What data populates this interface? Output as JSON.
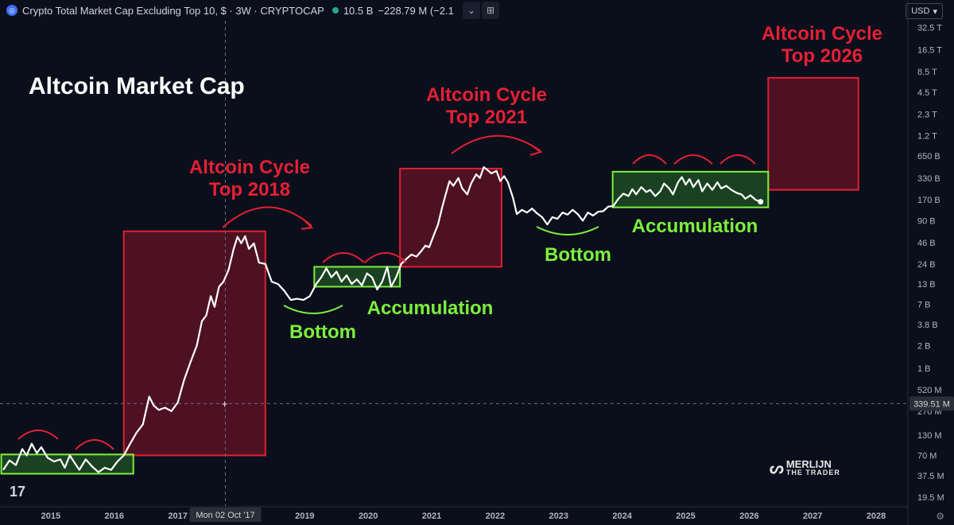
{
  "header": {
    "title": "Crypto Total Market Cap Excluding Top 10, $ · 3W · CRYPTOCAP",
    "volume": "10.5 B",
    "change": "−228.79 M (−2.1",
    "currency": "USD"
  },
  "watermark": {
    "line1": "MERLIJN",
    "line2": "THE TRADER"
  },
  "crosshair": {
    "date_label": "Mon 02 Oct '17",
    "price_label": "339.51 M"
  },
  "chart_data": {
    "type": "line",
    "title": "Altcoin Market Cap",
    "y_scale": "log",
    "ylim": [
      15000000,
      40000000000000
    ],
    "xlim": [
      2014.2,
      2028.5
    ],
    "y_ticks": [
      {
        "v": 32500000000000,
        "label": "32.5 T"
      },
      {
        "v": 16500000000000,
        "label": "16.5 T"
      },
      {
        "v": 8500000000000,
        "label": "8.5 T"
      },
      {
        "v": 4500000000000,
        "label": "4.5 T"
      },
      {
        "v": 2300000000000,
        "label": "2.3 T"
      },
      {
        "v": 1200000000000,
        "label": "1.2 T"
      },
      {
        "v": 650000000000,
        "label": "650 B"
      },
      {
        "v": 330000000000,
        "label": "330 B"
      },
      {
        "v": 170000000000,
        "label": "170 B"
      },
      {
        "v": 90000000000,
        "label": "90 B"
      },
      {
        "v": 46000000000,
        "label": "46 B"
      },
      {
        "v": 24000000000,
        "label": "24 B"
      },
      {
        "v": 13000000000,
        "label": "13 B"
      },
      {
        "v": 7000000000,
        "label": "7 B"
      },
      {
        "v": 3800000000,
        "label": "3.8 B"
      },
      {
        "v": 2000000000,
        "label": "2 B"
      },
      {
        "v": 1000000000,
        "label": "1 B"
      },
      {
        "v": 520000000,
        "label": "520 M"
      },
      {
        "v": 270000000,
        "label": "270 M"
      },
      {
        "v": 130000000,
        "label": "130 M"
      },
      {
        "v": 70000000,
        "label": "70 M"
      },
      {
        "v": 37500000,
        "label": "37.5 M"
      },
      {
        "v": 19500000,
        "label": "19.5 M"
      }
    ],
    "x_ticks": [
      {
        "v": 2015,
        "label": "2015"
      },
      {
        "v": 2016,
        "label": "2016"
      },
      {
        "v": 2017,
        "label": "2017"
      },
      {
        "v": 2019,
        "label": "2019"
      },
      {
        "v": 2020,
        "label": "2020"
      },
      {
        "v": 2021,
        "label": "2021"
      },
      {
        "v": 2022,
        "label": "2022"
      },
      {
        "v": 2023,
        "label": "2023"
      },
      {
        "v": 2024,
        "label": "2024"
      },
      {
        "v": 2025,
        "label": "2025"
      },
      {
        "v": 2026,
        "label": "2026"
      },
      {
        "v": 2027,
        "label": "2027"
      },
      {
        "v": 2028,
        "label": "2028"
      }
    ],
    "crosshair": {
      "x": 2017.75,
      "y": 339510000
    },
    "series": [
      {
        "color": "#ffffff",
        "points": [
          [
            2014.25,
            45000000
          ],
          [
            2014.35,
            60000000
          ],
          [
            2014.45,
            52000000
          ],
          [
            2014.55,
            85000000
          ],
          [
            2014.62,
            70000000
          ],
          [
            2014.7,
            100000000
          ],
          [
            2014.78,
            75000000
          ],
          [
            2014.85,
            90000000
          ],
          [
            2014.95,
            65000000
          ],
          [
            2015.05,
            58000000
          ],
          [
            2015.15,
            62000000
          ],
          [
            2015.22,
            48000000
          ],
          [
            2015.3,
            70000000
          ],
          [
            2015.38,
            55000000
          ],
          [
            2015.45,
            45000000
          ],
          [
            2015.55,
            62000000
          ],
          [
            2015.65,
            50000000
          ],
          [
            2015.75,
            42000000
          ],
          [
            2015.85,
            48000000
          ],
          [
            2015.95,
            45000000
          ],
          [
            2016.05,
            58000000
          ],
          [
            2016.15,
            70000000
          ],
          [
            2016.25,
            100000000
          ],
          [
            2016.35,
            140000000
          ],
          [
            2016.45,
            180000000
          ],
          [
            2016.55,
            420000000
          ],
          [
            2016.62,
            320000000
          ],
          [
            2016.7,
            280000000
          ],
          [
            2016.8,
            300000000
          ],
          [
            2016.9,
            270000000
          ],
          [
            2017.0,
            350000000
          ],
          [
            2017.1,
            700000000
          ],
          [
            2017.2,
            1200000000
          ],
          [
            2017.3,
            2000000000
          ],
          [
            2017.38,
            4200000000
          ],
          [
            2017.45,
            5000000000
          ],
          [
            2017.52,
            9000000000
          ],
          [
            2017.58,
            6500000000
          ],
          [
            2017.65,
            12000000000
          ],
          [
            2017.72,
            14000000000
          ],
          [
            2017.8,
            20000000000
          ],
          [
            2017.88,
            38000000000
          ],
          [
            2017.94,
            55000000000
          ],
          [
            2018.0,
            45000000000
          ],
          [
            2018.06,
            56000000000
          ],
          [
            2018.12,
            38000000000
          ],
          [
            2018.2,
            45000000000
          ],
          [
            2018.28,
            25000000000
          ],
          [
            2018.38,
            24000000000
          ],
          [
            2018.48,
            14000000000
          ],
          [
            2018.58,
            13000000000
          ],
          [
            2018.68,
            10500000000
          ],
          [
            2018.78,
            8000000000
          ],
          [
            2018.88,
            8300000000
          ],
          [
            2018.98,
            8000000000
          ],
          [
            2019.08,
            9000000000
          ],
          [
            2019.18,
            13000000000
          ],
          [
            2019.26,
            16000000000
          ],
          [
            2019.34,
            21000000000
          ],
          [
            2019.42,
            16000000000
          ],
          [
            2019.5,
            19000000000
          ],
          [
            2019.58,
            14000000000
          ],
          [
            2019.66,
            17000000000
          ],
          [
            2019.74,
            13000000000
          ],
          [
            2019.82,
            15000000000
          ],
          [
            2019.9,
            12500000000
          ],
          [
            2019.98,
            18000000000
          ],
          [
            2020.06,
            16000000000
          ],
          [
            2020.14,
            11000000000
          ],
          [
            2020.22,
            14000000000
          ],
          [
            2020.3,
            22000000000
          ],
          [
            2020.36,
            12000000000
          ],
          [
            2020.44,
            16000000000
          ],
          [
            2020.52,
            24000000000
          ],
          [
            2020.6,
            28000000000
          ],
          [
            2020.68,
            32000000000
          ],
          [
            2020.76,
            30000000000
          ],
          [
            2020.84,
            36000000000
          ],
          [
            2020.9,
            42000000000
          ],
          [
            2020.96,
            40000000000
          ],
          [
            2021.04,
            60000000000
          ],
          [
            2021.1,
            80000000000
          ],
          [
            2021.16,
            130000000000
          ],
          [
            2021.22,
            200000000000
          ],
          [
            2021.28,
            300000000000
          ],
          [
            2021.34,
            260000000000
          ],
          [
            2021.42,
            330000000000
          ],
          [
            2021.48,
            240000000000
          ],
          [
            2021.56,
            200000000000
          ],
          [
            2021.62,
            280000000000
          ],
          [
            2021.7,
            370000000000
          ],
          [
            2021.76,
            330000000000
          ],
          [
            2021.82,
            460000000000
          ],
          [
            2021.88,
            420000000000
          ],
          [
            2021.94,
            380000000000
          ],
          [
            2022.02,
            410000000000
          ],
          [
            2022.08,
            300000000000
          ],
          [
            2022.14,
            350000000000
          ],
          [
            2022.2,
            290000000000
          ],
          [
            2022.28,
            180000000000
          ],
          [
            2022.34,
            110000000000
          ],
          [
            2022.42,
            125000000000
          ],
          [
            2022.5,
            115000000000
          ],
          [
            2022.58,
            130000000000
          ],
          [
            2022.66,
            112000000000
          ],
          [
            2022.74,
            100000000000
          ],
          [
            2022.82,
            80000000000
          ],
          [
            2022.9,
            100000000000
          ],
          [
            2022.98,
            95000000000
          ],
          [
            2023.06,
            115000000000
          ],
          [
            2023.14,
            108000000000
          ],
          [
            2023.22,
            125000000000
          ],
          [
            2023.3,
            110000000000
          ],
          [
            2023.38,
            90000000000
          ],
          [
            2023.46,
            115000000000
          ],
          [
            2023.54,
            105000000000
          ],
          [
            2023.62,
            118000000000
          ],
          [
            2023.7,
            120000000000
          ],
          [
            2023.78,
            138000000000
          ],
          [
            2023.86,
            140000000000
          ],
          [
            2023.94,
            175000000000
          ],
          [
            2024.02,
            205000000000
          ],
          [
            2024.1,
            190000000000
          ],
          [
            2024.16,
            235000000000
          ],
          [
            2024.22,
            200000000000
          ],
          [
            2024.3,
            250000000000
          ],
          [
            2024.38,
            215000000000
          ],
          [
            2024.44,
            230000000000
          ],
          [
            2024.52,
            190000000000
          ],
          [
            2024.6,
            220000000000
          ],
          [
            2024.66,
            280000000000
          ],
          [
            2024.74,
            240000000000
          ],
          [
            2024.8,
            200000000000
          ],
          [
            2024.88,
            290000000000
          ],
          [
            2024.94,
            340000000000
          ],
          [
            2025.0,
            270000000000
          ],
          [
            2025.06,
            320000000000
          ],
          [
            2025.12,
            250000000000
          ],
          [
            2025.2,
            310000000000
          ],
          [
            2025.26,
            220000000000
          ],
          [
            2025.34,
            280000000000
          ],
          [
            2025.42,
            230000000000
          ],
          [
            2025.5,
            290000000000
          ],
          [
            2025.56,
            240000000000
          ],
          [
            2025.64,
            260000000000
          ],
          [
            2025.72,
            230000000000
          ],
          [
            2025.8,
            210000000000
          ],
          [
            2025.88,
            200000000000
          ],
          [
            2025.94,
            175000000000
          ],
          [
            2026.02,
            195000000000
          ],
          [
            2026.1,
            170000000000
          ],
          [
            2026.18,
            160000000000
          ]
        ]
      }
    ],
    "zones": [
      {
        "kind": "top",
        "x0": 2016.15,
        "x1": 2018.38,
        "y0": 70000000,
        "y1": 65000000000
      },
      {
        "kind": "top",
        "x0": 2020.5,
        "x1": 2022.1,
        "y0": 22000000000,
        "y1": 440000000000
      },
      {
        "kind": "top",
        "x0": 2026.3,
        "x1": 2027.72,
        "y0": 230000000000,
        "y1": 7000000000000
      },
      {
        "kind": "accumulation",
        "x0": 2014.22,
        "x1": 2016.3,
        "y0": 40000000,
        "y1": 72000000
      },
      {
        "kind": "accumulation",
        "x0": 2019.15,
        "x1": 2020.5,
        "y0": 12000000000,
        "y1": 22000000000
      },
      {
        "kind": "accumulation",
        "x0": 2023.85,
        "x1": 2026.3,
        "y0": 135000000000,
        "y1": 400000000000
      }
    ],
    "annotations": {
      "top_2018": [
        "Altcoin Cycle",
        "Top 2018"
      ],
      "top_2021": [
        "Altcoin Cycle",
        "Top 2021"
      ],
      "top_2026": [
        "Altcoin Cycle",
        "Top 2026"
      ],
      "accumulation_2019": "Accumulation",
      "accumulation_2024": "Accumulation",
      "bottom_2018": "Bottom",
      "bottom_2022": "Bottom"
    }
  }
}
